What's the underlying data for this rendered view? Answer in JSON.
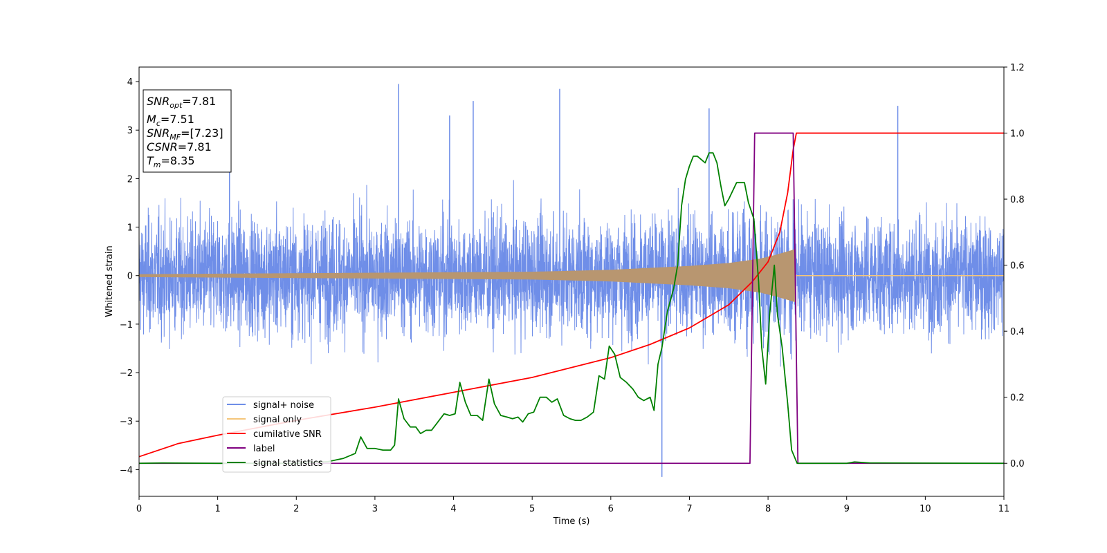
{
  "chart_data": {
    "type": "line",
    "xlabel": "Time (s)",
    "ylabel": "Whitened strain",
    "xlim": [
      0,
      11
    ],
    "ylim": [
      -4.55,
      4.3
    ],
    "y2lim": [
      -0.1,
      1.2
    ],
    "xticks": [
      "0",
      "1",
      "2",
      "3",
      "4",
      "5",
      "6",
      "7",
      "8",
      "9",
      "10",
      "11"
    ],
    "yticks": [
      "−4",
      "−3",
      "−2",
      "−1",
      "0",
      "1",
      "2",
      "3",
      "4"
    ],
    "y2ticks": [
      "0.0",
      "0.2",
      "0.4",
      "0.6",
      "0.8",
      "1.0",
      "1.2"
    ],
    "legend_position": "lower-left",
    "info_box": {
      "lines": [
        {
          "sym": "SNR",
          "sub": "opt",
          "val": "=7.81"
        },
        {
          "sym": "M",
          "sub": "c",
          "val": "=7.51"
        },
        {
          "sym": "SNR",
          "sub": "MF",
          "val": "=[7.23]"
        },
        {
          "sym": "CSNR",
          "sub": "",
          "val": "=7.81"
        },
        {
          "sym": "T",
          "sub": "m",
          "val": "=8.35"
        }
      ]
    },
    "series": [
      {
        "name": "signal+ noise",
        "axis": "left",
        "color": "#6f8ee8",
        "noise_std": 0.95,
        "spikes": [
          [
            3.3,
            3.95
          ],
          [
            5.35,
            3.85
          ],
          [
            6.65,
            -4.15
          ],
          [
            4.25,
            3.6
          ],
          [
            9.65,
            3.5
          ],
          [
            7.25,
            3.45
          ],
          [
            3.95,
            3.3
          ],
          [
            1.15,
            3.3
          ]
        ]
      },
      {
        "name": "signal only",
        "axis": "left",
        "color": "#f5c57a",
        "fill_color": "#b89670",
        "envelope": [
          [
            0,
            0.03
          ],
          [
            2,
            0.05
          ],
          [
            4,
            0.07
          ],
          [
            5,
            0.08
          ],
          [
            6,
            0.12
          ],
          [
            7,
            0.2
          ],
          [
            7.5,
            0.26
          ],
          [
            7.9,
            0.35
          ],
          [
            8.1,
            0.43
          ],
          [
            8.25,
            0.5
          ],
          [
            8.35,
            0.55
          ],
          [
            8.36,
            0.0
          ],
          [
            11,
            0.0
          ]
        ]
      },
      {
        "name": "cumilative SNR",
        "axis": "right",
        "color": "#ff0000",
        "points": [
          [
            0,
            0.02
          ],
          [
            0.5,
            0.06
          ],
          [
            1,
            0.085
          ],
          [
            2,
            0.13
          ],
          [
            3,
            0.17
          ],
          [
            4,
            0.215
          ],
          [
            5,
            0.26
          ],
          [
            6,
            0.32
          ],
          [
            6.5,
            0.36
          ],
          [
            7,
            0.41
          ],
          [
            7.5,
            0.48
          ],
          [
            7.8,
            0.55
          ],
          [
            8,
            0.61
          ],
          [
            8.15,
            0.7
          ],
          [
            8.25,
            0.82
          ],
          [
            8.32,
            0.95
          ],
          [
            8.36,
            1.0
          ],
          [
            11,
            1.0
          ]
        ]
      },
      {
        "name": "label",
        "axis": "right",
        "color": "#800080",
        "points": [
          [
            0,
            0.0
          ],
          [
            7.77,
            0.0
          ],
          [
            7.83,
            1.0
          ],
          [
            8.32,
            1.0
          ],
          [
            8.38,
            0.0
          ],
          [
            11,
            0.0
          ]
        ]
      },
      {
        "name": "signal statistics",
        "axis": "right",
        "color": "#008000",
        "points": [
          [
            0,
            0.0
          ],
          [
            0.3,
            0.001
          ],
          [
            1,
            0.0
          ],
          [
            2,
            0.0
          ],
          [
            2.4,
            0.005
          ],
          [
            2.6,
            0.015
          ],
          [
            2.75,
            0.03
          ],
          [
            2.82,
            0.08
          ],
          [
            2.9,
            0.045
          ],
          [
            3.0,
            0.045
          ],
          [
            3.1,
            0.04
          ],
          [
            3.2,
            0.04
          ],
          [
            3.25,
            0.055
          ],
          [
            3.3,
            0.195
          ],
          [
            3.37,
            0.135
          ],
          [
            3.45,
            0.11
          ],
          [
            3.52,
            0.11
          ],
          [
            3.58,
            0.09
          ],
          [
            3.65,
            0.1
          ],
          [
            3.72,
            0.1
          ],
          [
            3.8,
            0.125
          ],
          [
            3.88,
            0.15
          ],
          [
            3.95,
            0.145
          ],
          [
            4.02,
            0.15
          ],
          [
            4.08,
            0.245
          ],
          [
            4.15,
            0.185
          ],
          [
            4.22,
            0.145
          ],
          [
            4.3,
            0.145
          ],
          [
            4.37,
            0.13
          ],
          [
            4.45,
            0.255
          ],
          [
            4.52,
            0.18
          ],
          [
            4.6,
            0.145
          ],
          [
            4.68,
            0.14
          ],
          [
            4.75,
            0.135
          ],
          [
            4.82,
            0.14
          ],
          [
            4.88,
            0.125
          ],
          [
            4.95,
            0.15
          ],
          [
            5.02,
            0.155
          ],
          [
            5.1,
            0.2
          ],
          [
            5.18,
            0.2
          ],
          [
            5.25,
            0.185
          ],
          [
            5.32,
            0.195
          ],
          [
            5.4,
            0.145
          ],
          [
            5.48,
            0.135
          ],
          [
            5.55,
            0.13
          ],
          [
            5.62,
            0.13
          ],
          [
            5.7,
            0.14
          ],
          [
            5.78,
            0.155
          ],
          [
            5.85,
            0.265
          ],
          [
            5.92,
            0.255
          ],
          [
            5.98,
            0.355
          ],
          [
            6.05,
            0.33
          ],
          [
            6.12,
            0.26
          ],
          [
            6.2,
            0.245
          ],
          [
            6.28,
            0.225
          ],
          [
            6.35,
            0.2
          ],
          [
            6.42,
            0.19
          ],
          [
            6.5,
            0.2
          ],
          [
            6.55,
            0.16
          ],
          [
            6.6,
            0.3
          ],
          [
            6.65,
            0.35
          ],
          [
            6.72,
            0.46
          ],
          [
            6.8,
            0.53
          ],
          [
            6.85,
            0.6
          ],
          [
            6.9,
            0.78
          ],
          [
            6.95,
            0.86
          ],
          [
            7.0,
            0.9
          ],
          [
            7.05,
            0.93
          ],
          [
            7.1,
            0.93
          ],
          [
            7.15,
            0.92
          ],
          [
            7.2,
            0.91
          ],
          [
            7.25,
            0.94
          ],
          [
            7.3,
            0.94
          ],
          [
            7.35,
            0.91
          ],
          [
            7.4,
            0.84
          ],
          [
            7.45,
            0.78
          ],
          [
            7.5,
            0.8
          ],
          [
            7.6,
            0.85
          ],
          [
            7.7,
            0.85
          ],
          [
            7.75,
            0.79
          ],
          [
            7.82,
            0.74
          ],
          [
            7.88,
            0.55
          ],
          [
            7.92,
            0.35
          ],
          [
            7.97,
            0.24
          ],
          [
            8.02,
            0.45
          ],
          [
            8.08,
            0.6
          ],
          [
            8.12,
            0.45
          ],
          [
            8.18,
            0.35
          ],
          [
            8.25,
            0.18
          ],
          [
            8.3,
            0.04
          ],
          [
            8.37,
            0.0
          ],
          [
            9.0,
            0.0
          ],
          [
            9.1,
            0.004
          ],
          [
            9.3,
            0.001
          ],
          [
            11,
            0.0
          ]
        ]
      }
    ]
  }
}
